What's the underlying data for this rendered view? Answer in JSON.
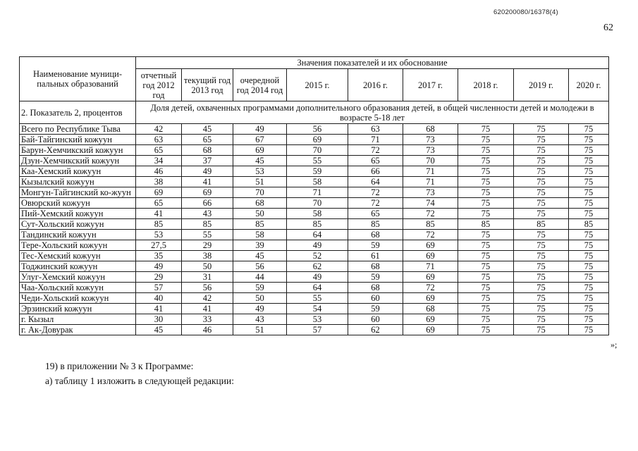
{
  "page": {
    "doc_ref": "620200080/16378(4)",
    "page_number": "62",
    "closing_mark": "»;",
    "footer_lines": [
      "19) в приложении № 3 к Программе:",
      "а) таблицу 1 изложить в следующей редакции:"
    ]
  },
  "table": {
    "col1_header": "Наименование муници-пальных образований",
    "group_header": "Значения показателей и их обоснование",
    "year_headers": [
      "отчетный год 2012 год",
      "текущий год 2013 год",
      "очередной год 2014 год",
      "2015 г.",
      "2016 г.",
      "2017 г.",
      "2018 г.",
      "2019 г.",
      "2020 г."
    ],
    "indicator_label": "2. Показатель 2, процентов",
    "indicator_description": "Доля детей, охваченных программами дополнительного образования детей, в общей численности детей и молодежи в возрасте 5-18 лет",
    "rows": [
      {
        "name": "Всего по Республике Тыва",
        "values": [
          "42",
          "45",
          "49",
          "56",
          "63",
          "68",
          "75",
          "75",
          "75"
        ]
      },
      {
        "name": "Бай-Тайгинский кожуун",
        "values": [
          "63",
          "65",
          "67",
          "69",
          "71",
          "73",
          "75",
          "75",
          "75"
        ]
      },
      {
        "name": "Барун-Хемчикский кожуун",
        "values": [
          "65",
          "68",
          "69",
          "70",
          "72",
          "73",
          "75",
          "75",
          "75"
        ]
      },
      {
        "name": "Дзун-Хемчикский кожуун",
        "values": [
          "34",
          "37",
          "45",
          "55",
          "65",
          "70",
          "75",
          "75",
          "75"
        ]
      },
      {
        "name": "Каа-Хемский кожуун",
        "values": [
          "46",
          "49",
          "53",
          "59",
          "66",
          "71",
          "75",
          "75",
          "75"
        ]
      },
      {
        "name": "Кызылский кожуун",
        "values": [
          "38",
          "41",
          "51",
          "58",
          "64",
          "71",
          "75",
          "75",
          "75"
        ]
      },
      {
        "name": "Монгун-Тайгинский ко-жуун",
        "values": [
          "69",
          "69",
          "70",
          "71",
          "72",
          "73",
          "75",
          "75",
          "75"
        ]
      },
      {
        "name": "Овюрский кожуун",
        "values": [
          "65",
          "66",
          "68",
          "70",
          "72",
          "74",
          "75",
          "75",
          "75"
        ]
      },
      {
        "name": "Пий-Хемский кожуун",
        "values": [
          "41",
          "43",
          "50",
          "58",
          "65",
          "72",
          "75",
          "75",
          "75"
        ]
      },
      {
        "name": "Сут-Хольский кожуун",
        "values": [
          "85",
          "85",
          "85",
          "85",
          "85",
          "85",
          "85",
          "85",
          "85"
        ]
      },
      {
        "name": "Тандинский кожуун",
        "values": [
          "53",
          "55",
          "58",
          "64",
          "68",
          "72",
          "75",
          "75",
          "75"
        ]
      },
      {
        "name": "Тере-Хольский кожуун",
        "values": [
          "27,5",
          "29",
          "39",
          "49",
          "59",
          "69",
          "75",
          "75",
          "75"
        ]
      },
      {
        "name": "Тес-Хемский кожуун",
        "values": [
          "35",
          "38",
          "45",
          "52",
          "61",
          "69",
          "75",
          "75",
          "75"
        ]
      },
      {
        "name": "Тоджинский кожуун",
        "values": [
          "49",
          "50",
          "56",
          "62",
          "68",
          "71",
          "75",
          "75",
          "75"
        ]
      },
      {
        "name": "Улуг-Хемский кожуун",
        "values": [
          "29",
          "31",
          "44",
          "49",
          "59",
          "69",
          "75",
          "75",
          "75"
        ]
      },
      {
        "name": "Чаа-Хольский кожуун",
        "values": [
          "57",
          "56",
          "59",
          "64",
          "68",
          "72",
          "75",
          "75",
          "75"
        ]
      },
      {
        "name": "Чеди-Хольский кожуун",
        "values": [
          "40",
          "42",
          "50",
          "55",
          "60",
          "69",
          "75",
          "75",
          "75"
        ]
      },
      {
        "name": "Эрзинский кожуун",
        "values": [
          "41",
          "41",
          "49",
          "54",
          "59",
          "68",
          "75",
          "75",
          "75"
        ]
      },
      {
        "name": "г. Кызыл",
        "values": [
          "30",
          "33",
          "43",
          "53",
          "60",
          "69",
          "75",
          "75",
          "75"
        ]
      },
      {
        "name": "г. Ак-Довурак",
        "values": [
          "45",
          "46",
          "51",
          "57",
          "62",
          "69",
          "75",
          "75",
          "75"
        ]
      }
    ]
  }
}
